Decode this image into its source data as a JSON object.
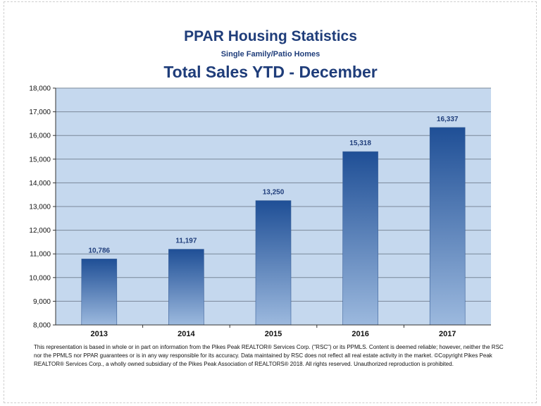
{
  "colors": {
    "plot_bg": "#c5d8ee",
    "grid": "#7a8899",
    "bar_top": "#1f4f96",
    "bar_bottom": "#9cb9de",
    "label": "#1f3d7a"
  },
  "chart_data": {
    "type": "bar",
    "title": "PPAR Housing Statistics",
    "subtitle": "Single Family/Patio Homes",
    "heading": "Total Sales YTD - December",
    "xlabel": "",
    "ylabel": "",
    "categories": [
      "2013",
      "2014",
      "2015",
      "2016",
      "2017"
    ],
    "values": [
      10786,
      11197,
      13250,
      15318,
      16337
    ],
    "value_labels": [
      "10,786",
      "11,197",
      "13,250",
      "15,318",
      "16,337"
    ],
    "ylim": [
      8000,
      18000
    ],
    "yticks": [
      8000,
      9000,
      10000,
      11000,
      12000,
      13000,
      14000,
      15000,
      16000,
      17000,
      18000
    ],
    "ytick_labels": [
      "8,000",
      "9,000",
      "10,000",
      "11,000",
      "12,000",
      "13,000",
      "14,000",
      "15,000",
      "16,000",
      "17,000",
      "18,000"
    ],
    "grid": true,
    "legend": "none"
  },
  "footer": {
    "disclaimer": "This representation is based in whole or in part on information from the Pikes Peak REALTOR® Services Corp. (\"RSC\") or its PPMLS. Content is deemed reliable; however, neither the RSC nor the PPMLS nor PPAR guarantees or is in any way responsible for its accuracy. Data maintained by RSC does not reflect all real estate activity in the market. ©Copyright Pikes Peak REALTOR® Services Corp., a wholly owned subsidiary of the Pikes Peak Association of REALTORS® 2018. All rights reserved. Unauthorized reproduction is prohibited."
  }
}
